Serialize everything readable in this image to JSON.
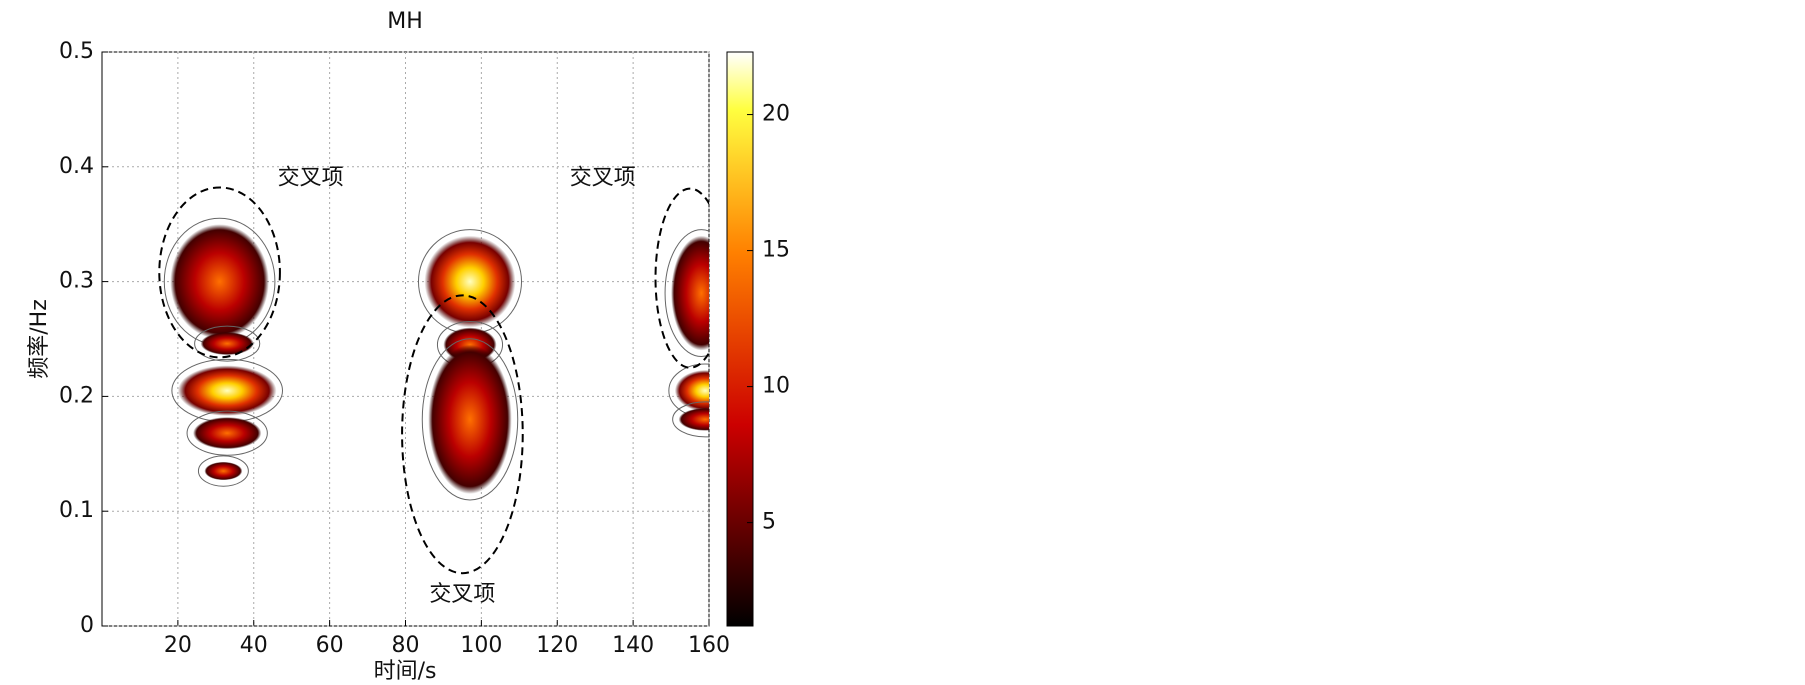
{
  "chart_data": {
    "type": "spectrogram",
    "title": "MH",
    "xlabel": "时间/s",
    "ylabel": "频率/Hz",
    "xlim": [
      0,
      160
    ],
    "xticks": [
      20,
      40,
      60,
      80,
      100,
      120,
      140,
      160
    ],
    "ylim": [
      0,
      0.5
    ],
    "yticks": [
      0,
      0.1,
      0.2,
      0.3,
      0.4,
      0.5
    ],
    "grid": true,
    "colormap": "hot",
    "colorbar": {
      "clim": [
        1.2,
        22.3
      ],
      "ticks": [
        5,
        10,
        15,
        20
      ]
    },
    "annotations": [
      "交叉项",
      "交叉项",
      "交叉项"
    ]
  }
}
